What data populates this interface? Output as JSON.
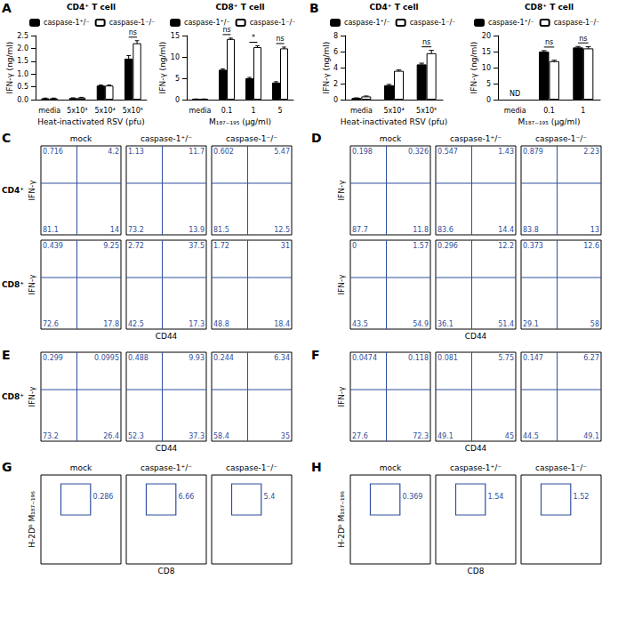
{
  "chart_data": [
    {
      "type": "bar",
      "panel": "A",
      "title": "CD4⁺ T cell",
      "y_label": "IFN-γ (ng/ml)",
      "x_label": "Heat-inactivated RSV (pfu)",
      "categories": [
        "media",
        "5x10³",
        "5x10⁴",
        "5x10⁵"
      ],
      "series": [
        {
          "name": "caspase-1⁺/⁻",
          "color": "#000000",
          "values": [
            0.05,
            0.06,
            0.55,
            1.6
          ],
          "errors": [
            0.01,
            0.01,
            0.02,
            0.12
          ]
        },
        {
          "name": "caspase-1⁻/⁻",
          "color": "#ffffff",
          "values": [
            0.05,
            0.08,
            0.55,
            2.2
          ],
          "errors": [
            0.01,
            0.01,
            0.02,
            0.1
          ]
        }
      ],
      "ylim": [
        0,
        2.5
      ],
      "yticks": [
        {
          "value": 0,
          "label": "0.0"
        },
        {
          "value": 0.5,
          "label": "0.5"
        },
        {
          "value": 1,
          "label": "1.0"
        },
        {
          "value": 1.5,
          "label": "1.5"
        },
        {
          "value": 2,
          "label": "2.0"
        },
        {
          "value": 2.5,
          "label": "2.5"
        }
      ],
      "annotations": [
        {
          "category": "5x10⁵",
          "text": "ns"
        }
      ],
      "grid": false,
      "legend": "top"
    },
    {
      "type": "bar",
      "title": "CD8⁺ T cell",
      "y_label": "IFN-γ (ng/ml)",
      "x_label": "M₁₈₇₋₁₉₅ (μg/ml)",
      "categories": [
        "media",
        "0.1",
        "1",
        "5"
      ],
      "series": [
        {
          "name": "caspase-1⁺/⁻",
          "color": "#000000",
          "values": [
            0.1,
            7,
            5,
            4
          ],
          "errors": [
            0.05,
            0.2,
            0.2,
            0.2
          ]
        },
        {
          "name": "caspase-1⁻/⁻",
          "color": "#ffffff",
          "values": [
            0.1,
            14.2,
            12.3,
            12
          ],
          "errors": [
            0.05,
            0.2,
            0.3,
            0.3
          ]
        }
      ],
      "ylim": [
        0,
        15
      ],
      "yticks": [
        0,
        5,
        10,
        15
      ],
      "annotations": [
        {
          "category": "0.1",
          "text": "ns"
        },
        {
          "category": "1",
          "text": "*"
        },
        {
          "category": "5",
          "text": "ns"
        }
      ],
      "grid": false,
      "legend": "top"
    },
    {
      "type": "bar",
      "panel": "B",
      "title": "CD4⁺ T cell",
      "y_label": "IFN-γ (ng/ml)",
      "x_label": "Heat-inactivated RSV (pfu)",
      "categories": [
        "media",
        "5x10⁴",
        "5x10⁵"
      ],
      "series": [
        {
          "name": "caspase-1⁺/⁻",
          "color": "#000000",
          "values": [
            0.2,
            1.8,
            4.4
          ],
          "errors": [
            0.02,
            0.1,
            0.15
          ]
        },
        {
          "name": "caspase-1⁻/⁻",
          "color": "#ffffff",
          "values": [
            0.4,
            3.6,
            5.8
          ],
          "errors": [
            0.05,
            0.1,
            0.35
          ]
        }
      ],
      "ylim": [
        0,
        8
      ],
      "yticks": [
        0,
        2,
        4,
        6,
        8
      ],
      "annotations": [
        {
          "category": "5x10⁵",
          "text": "ns"
        }
      ],
      "grid": false,
      "legend": "top"
    },
    {
      "type": "bar",
      "title": "CD8⁺ T cell",
      "y_label": "IFN-γ (ng/ml)",
      "x_label": "M₁₈₇₋₁₉₅ (μg/ml)",
      "categories": [
        "media",
        "0.1",
        "1"
      ],
      "series": [
        {
          "name": "caspase-1⁺/⁻",
          "color": "#000000",
          "values": [
            null,
            15,
            16.3
          ],
          "errors": [
            null,
            0.3,
            0.3
          ]
        },
        {
          "name": "caspase-1⁻/⁻",
          "color": "#ffffff",
          "values": [
            null,
            12,
            16
          ],
          "errors": [
            null,
            0.3,
            0.5
          ]
        }
      ],
      "ylim": [
        0,
        20
      ],
      "yticks": [
        0,
        5,
        10,
        15,
        20
      ],
      "annotations": [
        {
          "category": "media",
          "text": "ND"
        },
        {
          "category": "0.1",
          "text": "ns"
        },
        {
          "category": "1",
          "text": "ns"
        }
      ],
      "grid": false,
      "legend": "top"
    }
  ],
  "flow_panels": [
    {
      "panel": "C",
      "columns": [
        "mock",
        "caspase-1⁺/⁻",
        "caspase-1⁻/⁻"
      ],
      "y_label": "IFN-γ",
      "x_label": "CD44",
      "tick_labels": false,
      "rows": [
        {
          "label": "CD4⁺",
          "quadrants": [
            {
              "ul": 0.716,
              "ur": 4.2,
              "ll": 81.1,
              "lr": 14
            },
            {
              "ul": 1.13,
              "ur": 11.7,
              "ll": 73.2,
              "lr": 13.9
            },
            {
              "ul": 0.602,
              "ur": 5.47,
              "ll": 81.5,
              "lr": 12.5
            }
          ]
        },
        {
          "label": "CD8⁺",
          "quadrants": [
            {
              "ul": 0.439,
              "ur": 9.25,
              "ll": 72.6,
              "lr": 17.8
            },
            {
              "ul": 2.72,
              "ur": 37.5,
              "ll": 42.5,
              "lr": 17.3
            },
            {
              "ul": 1.72,
              "ur": 31,
              "ll": 48.8,
              "lr": 18.4
            }
          ]
        }
      ]
    },
    {
      "panel": "D",
      "columns": [
        "mock",
        "caspase-1⁺/⁻",
        "caspase-1⁻/⁻"
      ],
      "y_label": "IFN-γ",
      "x_label": "CD44",
      "tick_labels": false,
      "rows": [
        {
          "quadrants": [
            {
              "ul": 0.198,
              "ur": 0.326,
              "ll": 87.7,
              "lr": 11.8
            },
            {
              "ul": 0.547,
              "ur": 1.43,
              "ll": 83.6,
              "lr": 14.4
            },
            {
              "ul": 0.879,
              "ur": 2.23,
              "ll": 83.8,
              "lr": 13
            }
          ]
        },
        {
          "quadrants": [
            {
              "ul": 0,
              "ur": 1.57,
              "ll": 43.5,
              "lr": 54.9
            },
            {
              "ul": 0.296,
              "ur": 12.2,
              "ll": 36.1,
              "lr": 51.4
            },
            {
              "ul": 0.373,
              "ur": 12.6,
              "ll": 29.1,
              "lr": 58
            }
          ]
        }
      ]
    },
    {
      "panel": "E",
      "y_label": "IFN-γ",
      "x_label": "CD44",
      "tick_labels": false,
      "rows": [
        {
          "label": "CD8⁺",
          "quadrants": [
            {
              "ul": 0.299,
              "ur": 0.0995,
              "ll": 73.2,
              "lr": 26.4
            },
            {
              "ul": 0.488,
              "ur": 9.93,
              "ll": 52.3,
              "lr": 37.3
            },
            {
              "ul": 0.244,
              "ur": 6.34,
              "ll": 58.4,
              "lr": 35
            }
          ]
        }
      ]
    },
    {
      "panel": "F",
      "y_label": "IFN-γ",
      "x_label": "CD44",
      "tick_labels": false,
      "rows": [
        {
          "quadrants": [
            {
              "ul": 0.0474,
              "ur": 0.118,
              "ll": 27.6,
              "lr": 72.3
            },
            {
              "ul": 0.081,
              "ur": 5.75,
              "ll": 49.1,
              "lr": 45
            },
            {
              "ul": 0.147,
              "ur": 6.27,
              "ll": 44.5,
              "lr": 49.1
            }
          ]
        }
      ]
    },
    {
      "panel": "G",
      "columns": [
        "mock",
        "caspase-1⁺/⁻",
        "caspase-1⁻/⁻"
      ],
      "y_label": "H-2Dᵇ M₁₈₇₋₁₉₆",
      "x_label": "CD8",
      "tick_labels": false,
      "rows": [
        {
          "gates": [
            0.286,
            6.66,
            5.4
          ]
        }
      ]
    },
    {
      "panel": "H",
      "columns": [
        "mock",
        "caspase-1⁺/⁻",
        "caspase-1⁻/⁻"
      ],
      "y_label": "H-2Dᵇ M₁₈₇₋₁₉₆",
      "x_label": "CD8",
      "tick_labels": false,
      "rows": [
        {
          "gates": [
            0.369,
            1.54,
            1.52
          ]
        }
      ]
    }
  ]
}
